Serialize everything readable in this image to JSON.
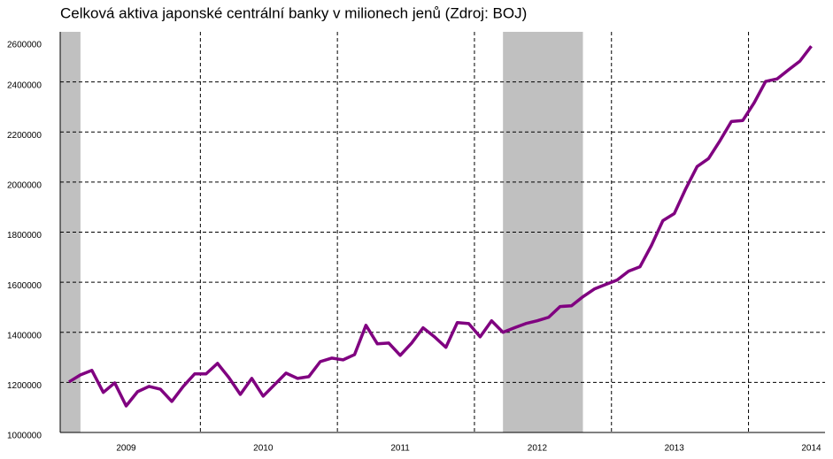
{
  "chart_data": {
    "type": "line",
    "title": "Celková aktiva japonské centrální banky v milionech jenů (Zdroj: BOJ)",
    "categories": [
      null,
      null,
      null,
      null,
      null,
      "2009",
      null,
      null,
      null,
      null,
      null,
      null,
      null,
      null,
      null,
      null,
      null,
      "2010",
      null,
      null,
      null,
      null,
      null,
      null,
      null,
      null,
      null,
      null,
      null,
      "2011",
      null,
      null,
      null,
      null,
      null,
      null,
      null,
      null,
      null,
      null,
      null,
      "2012",
      null,
      null,
      null,
      null,
      null,
      null,
      null,
      null,
      null,
      null,
      null,
      "2013",
      null,
      null,
      null,
      null,
      null,
      null,
      null,
      null,
      null,
      null,
      null,
      "2014"
    ],
    "series": [
      {
        "name": null,
        "color": "#800080",
        "values": [
          1202000,
          1230000,
          1248000,
          1160000,
          1198000,
          1106000,
          1163000,
          1184000,
          1173000,
          1124000,
          1184000,
          1234000,
          1234000,
          1276000,
          1219000,
          1152000,
          1216000,
          1145000,
          1191000,
          1237000,
          1216000,
          1223000,
          1283000,
          1297000,
          1290000,
          1311000,
          1428000,
          1354000,
          1357000,
          1308000,
          1357000,
          1418000,
          1382000,
          1340000,
          1439000,
          1435000,
          1382000,
          1446000,
          1400000,
          1418000,
          1435000,
          1446000,
          1460000,
          1503000,
          1506000,
          1542000,
          1573000,
          1591000,
          1609000,
          1644000,
          1662000,
          1747000,
          1846000,
          1874000,
          1973000,
          2062000,
          2094000,
          2165000,
          2242000,
          2246000,
          2317000,
          2402000,
          2412000,
          2448000,
          2483000,
          2543000
        ]
      }
    ],
    "shaded": [
      {
        "start": 0,
        "end": 1
      },
      {
        "start": 38,
        "end": 45
      }
    ],
    "ylim": [
      1000000,
      2600000
    ],
    "yticks": [
      1000000,
      1200000,
      1400000,
      1600000,
      1800000,
      2000000,
      2200000,
      2400000,
      2600000
    ],
    "grid": true
  }
}
